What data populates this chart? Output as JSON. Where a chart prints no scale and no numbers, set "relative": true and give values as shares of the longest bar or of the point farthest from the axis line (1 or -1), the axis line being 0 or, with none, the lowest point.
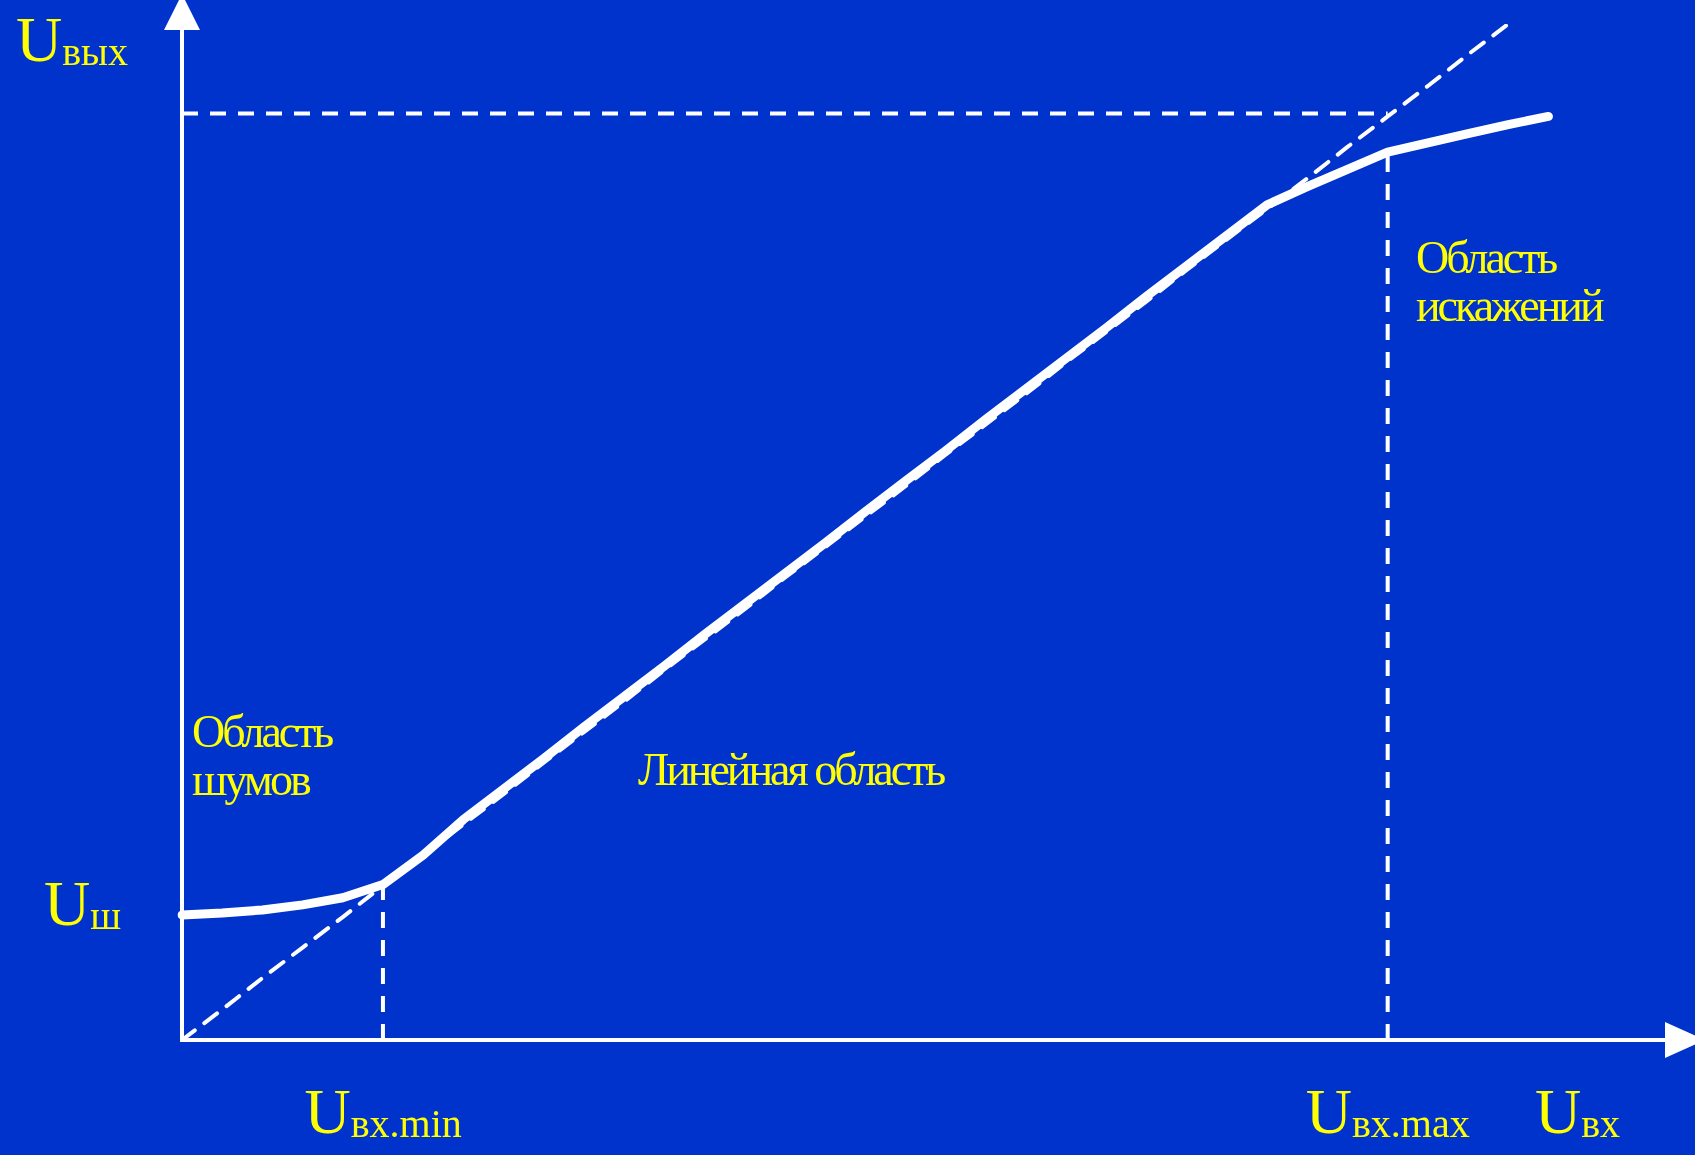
{
  "chart_data": {
    "type": "line",
    "relative": true,
    "xlabel": "U$_{вх}$",
    "ylabel": "U$_{вых}$",
    "categories": [
      null,
      null,
      null,
      null,
      null,
      "U$_{вх.min}$",
      null,
      null,
      null,
      null,
      null,
      null,
      null,
      null,
      null,
      null,
      null,
      null,
      null,
      null,
      null,
      null,
      null,
      null,
      null,
      null,
      null,
      null,
      null,
      null,
      "U$_{вх.max}$",
      null,
      null,
      null,
      null,
      null,
      null,
      null
    ],
    "series": [
      {
        "color": "#ffffff",
        "values": [
          0.123,
          0.125,
          0.128,
          0.133,
          0.14,
          0.153,
          0.182,
          0.217,
          0.247,
          0.277,
          0.308,
          0.338,
          0.368,
          0.399,
          0.429,
          0.459,
          0.489,
          0.52,
          0.55,
          0.58,
          0.611,
          0.641,
          0.671,
          0.701,
          0.732,
          0.762,
          0.792,
          0.822,
          0.84,
          0.857,
          0.874,
          0.883,
          0.892,
          0.901,
          0.909,
          null,
          null,
          null
        ]
      },
      {
        "color": "#ffffff",
        "line_style": "dashed",
        "values": [
          0,
          0.03,
          0.061,
          0.091,
          0.121,
          0.152,
          0.182,
          0.212,
          0.242,
          0.273,
          0.303,
          0.333,
          0.364,
          0.394,
          0.424,
          0.455,
          0.485,
          0.515,
          0.545,
          0.576,
          0.606,
          0.636,
          0.667,
          0.697,
          0.727,
          0.758,
          0.788,
          0.818,
          0.848,
          0.879,
          0.909,
          0.939,
          0.97,
          1.0,
          null,
          null,
          null,
          null
        ]
      }
    ],
    "ref_lines": [
      {
        "axis": "x",
        "value": "U$_{вх.min}$",
        "color": "#ffffff",
        "line_style": "dashed"
      },
      {
        "axis": "x",
        "value": "U$_{вх.max}$",
        "color": "#ffffff",
        "line_style": "dashed"
      },
      {
        "axis": "y",
        "value": 0.912,
        "color": "#ffffff",
        "line_style": "dashed"
      }
    ],
    "annotations": [
      "U$_{ш}$",
      "Область шумов",
      "Линейная область",
      "Область искажений"
    ],
    "grid": false,
    "legend": false
  }
}
